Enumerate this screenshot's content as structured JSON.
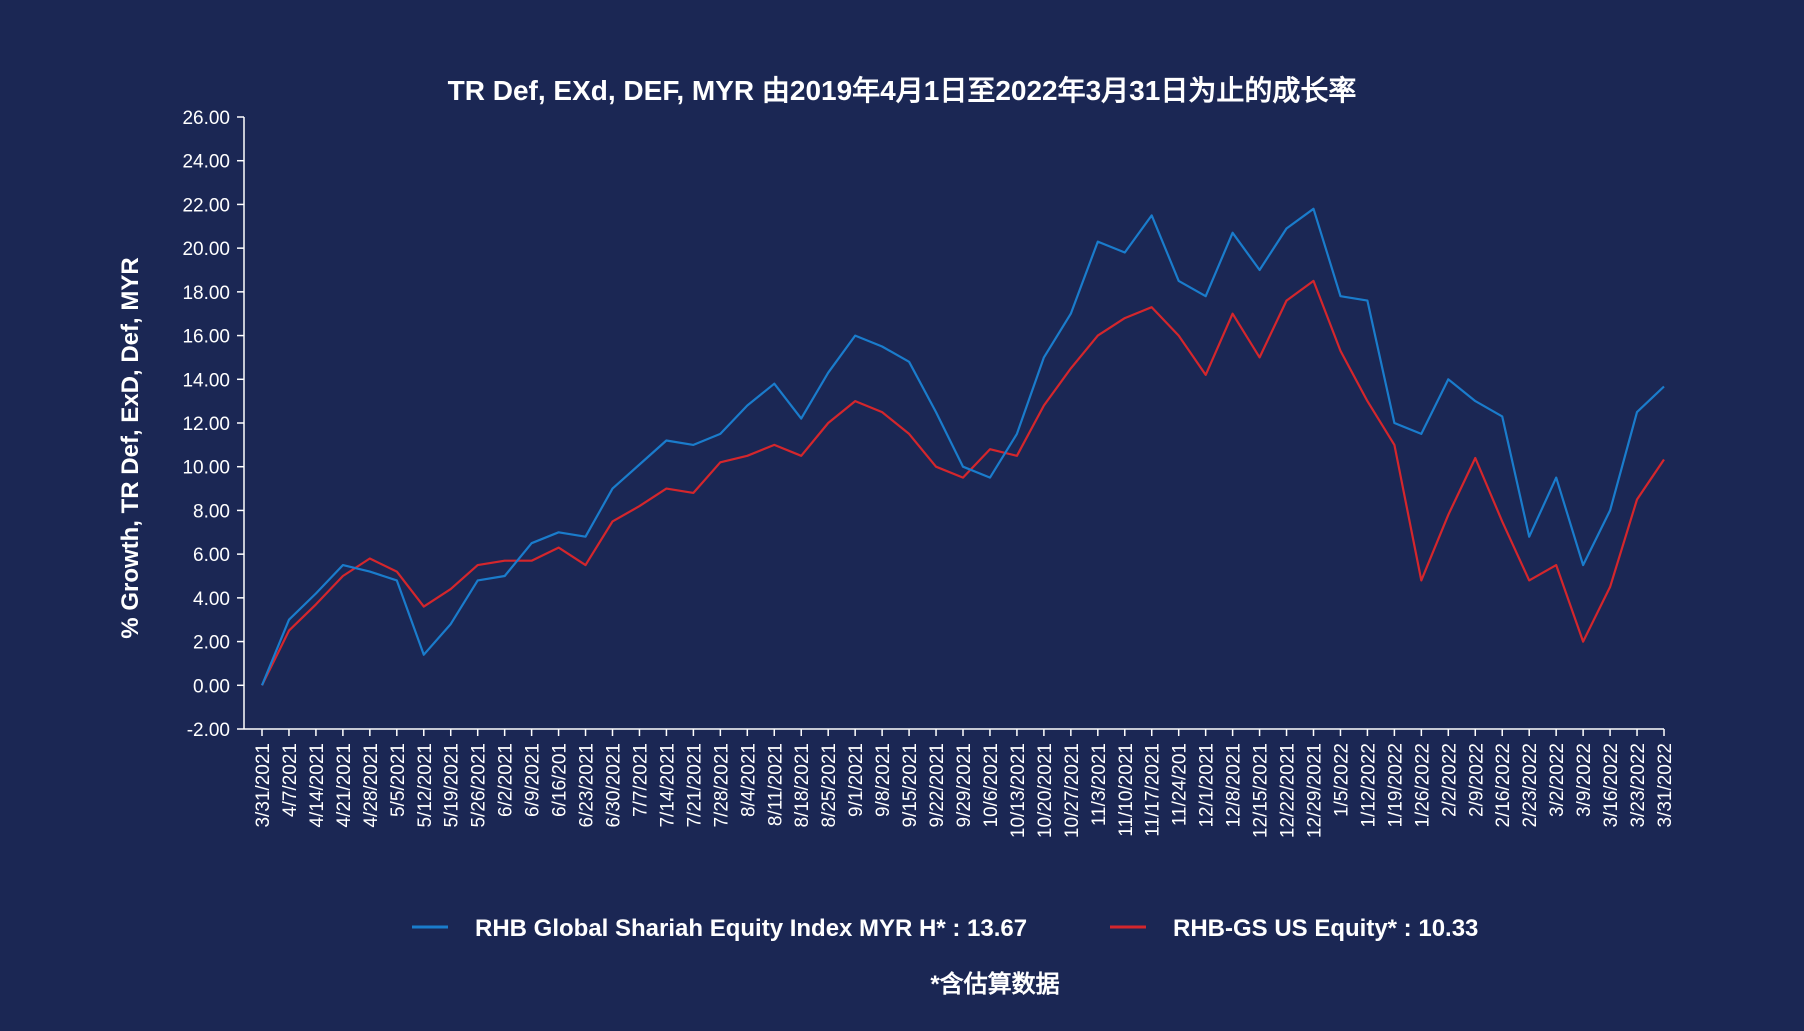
{
  "chart_data": {
    "type": "line",
    "title": "TR Def, EXd, DEF, MYR 由2019年4月1日至2022年3月31日为止的成长率",
    "ylabel": "% Growth, TR Def, ExD, Def, MYR",
    "xlabel": "",
    "ylim": [
      -2,
      26
    ],
    "yticks": [
      "-2.00",
      "0.00",
      "2.00",
      "4.00",
      "6.00",
      "8.00",
      "10.00",
      "12.00",
      "14.00",
      "16.00",
      "18.00",
      "20.00",
      "22.00",
      "24.00",
      "26.00"
    ],
    "grid": false,
    "legend_position": "bottom",
    "categories": [
      "3/31/2021",
      "4/7/2021",
      "4/14/2021",
      "4/21/2021",
      "4/28/2021",
      "5/5/2021",
      "5/12/2021",
      "5/19/2021",
      "5/26/2021",
      "6/2/2021",
      "6/9/2021",
      "6/16/201",
      "6/23/2021",
      "6/30/2021",
      "7/7/2021",
      "7/14/2021",
      "7/21/2021",
      "7/28/2021",
      "8/4/2021",
      "8/11/2021",
      "8/18/2021",
      "8/25/2021",
      "9/1/2021",
      "9/8/2021",
      "9/15/2021",
      "9/22/2021",
      "9/29/2021",
      "10/6/2021",
      "10/13/2021",
      "10/20/2021",
      "10/27/2021",
      "11/3/2021",
      "11/10/2021",
      "11/17/2021",
      "11/24/201",
      "12/1/2021",
      "12/8/2021",
      "12/15/2021",
      "12/22/2021",
      "12/29/2021",
      "1/5/2022",
      "1/12/2022",
      "1/19/2022",
      "1/26/2022",
      "2/2/2022",
      "2/9/2022",
      "2/16/2022",
      "2/23/2022",
      "3/2/2022",
      "3/9/2022",
      "3/16/2022",
      "3/23/2022",
      "3/31/2022"
    ],
    "series": [
      {
        "name": "RHB Global Shariah Equity Index MYR H*",
        "legend_label": "RHB Global Shariah Equity Index MYR H* : 13.67",
        "color": "#1a7ccc",
        "values": [
          0,
          3.0,
          4.2,
          5.5,
          5.2,
          4.8,
          1.4,
          2.8,
          4.8,
          5.0,
          6.5,
          7.0,
          6.8,
          9.0,
          10.1,
          11.2,
          11.0,
          11.5,
          12.8,
          13.8,
          12.2,
          14.3,
          16.0,
          15.5,
          14.8,
          12.5,
          10.0,
          9.5,
          11.5,
          15.0,
          17.0,
          20.3,
          19.8,
          21.5,
          18.5,
          17.8,
          20.7,
          19.0,
          20.9,
          21.8,
          17.8,
          17.6,
          12.0,
          11.5,
          14.0,
          13.0,
          12.3,
          6.8,
          9.5,
          5.5,
          8.0,
          12.5,
          13.67
        ]
      },
      {
        "name": "RHB-GS US Equity*",
        "legend_label": "RHB-GS US Equity*  : 10.33",
        "color": "#d4262c",
        "values": [
          0,
          2.5,
          3.7,
          5.0,
          5.8,
          5.2,
          3.6,
          4.4,
          5.5,
          5.7,
          5.7,
          6.3,
          5.5,
          7.5,
          8.2,
          9.0,
          8.8,
          10.2,
          10.5,
          11.0,
          10.5,
          12.0,
          13.0,
          12.5,
          11.5,
          10.0,
          9.5,
          10.8,
          10.5,
          12.8,
          14.5,
          16.0,
          16.8,
          17.3,
          16.0,
          14.2,
          17.0,
          15.0,
          17.6,
          18.5,
          15.3,
          13.0,
          11.0,
          4.8,
          7.8,
          10.4,
          7.5,
          4.8,
          5.5,
          2.0,
          4.5,
          8.5,
          10.33
        ]
      }
    ],
    "footnote": "*含估算数据"
  }
}
